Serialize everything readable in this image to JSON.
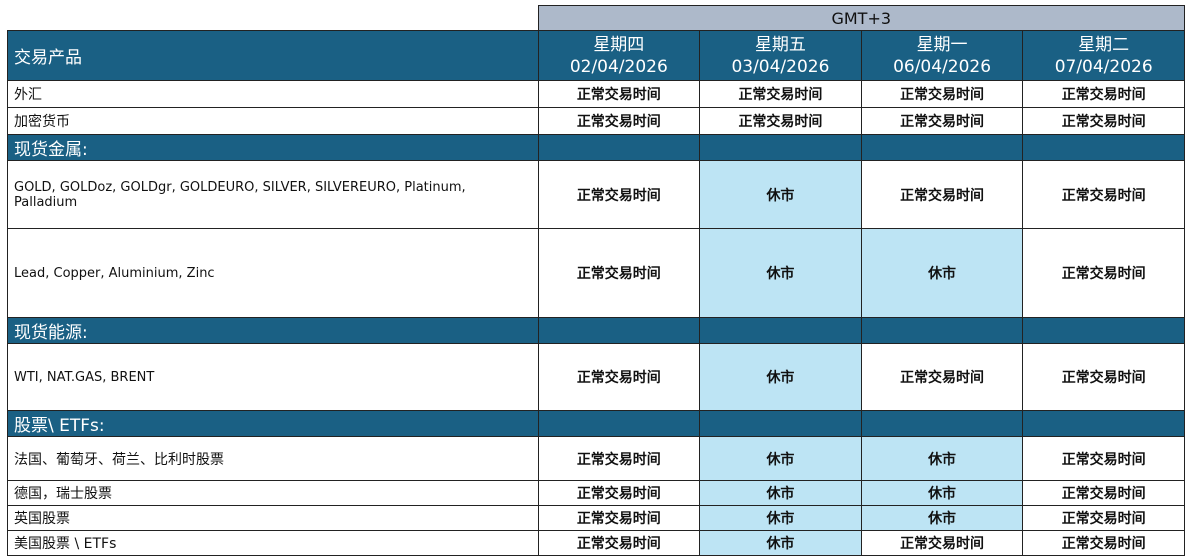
{
  "timezone": "GMT+3",
  "header_label": "交易产品",
  "days": [
    {
      "weekday": "星期四",
      "date": "02/04/2026"
    },
    {
      "weekday": "星期五",
      "date": "03/04/2026"
    },
    {
      "weekday": "星期一",
      "date": "06/04/2026"
    },
    {
      "weekday": "星期二",
      "date": "07/04/2026"
    }
  ],
  "colors": {
    "header": "#1a6084",
    "gmt": "#adb9ca",
    "closed": "#bde4f4"
  },
  "rows": [
    {
      "type": "item",
      "name": "外汇",
      "h": 27,
      "values": [
        "正常交易时间",
        "正常交易时间",
        "正常交易时间",
        "正常交易时间"
      ]
    },
    {
      "type": "item",
      "name": "加密货币",
      "h": 27,
      "values": [
        "正常交易时间",
        "正常交易时间",
        "正常交易时间",
        "正常交易时间"
      ]
    },
    {
      "type": "section",
      "name": "现货金属:",
      "h": 26
    },
    {
      "type": "item",
      "name": "GOLD, GOLDoz, GOLDgr, GOLDEURO, SILVER, SILVEREURO, Platinum, Palladium",
      "en": true,
      "h": 68,
      "values": [
        "正常交易时间",
        "休市",
        "正常交易时间",
        "正常交易时间"
      ]
    },
    {
      "type": "item",
      "name": "Lead, Copper, Aluminium, Zinc",
      "en": true,
      "h": 89,
      "values": [
        "正常交易时间",
        "休市",
        "休市",
        "正常交易时间"
      ]
    },
    {
      "type": "section",
      "name": "现货能源:",
      "h": 26
    },
    {
      "type": "item",
      "name": "WTI, NAT.GAS, BRENT",
      "en": true,
      "h": 67,
      "values": [
        "正常交易时间",
        "休市",
        "正常交易时间",
        "正常交易时间"
      ]
    },
    {
      "type": "section",
      "name": "股票\\ ETFs:",
      "h": 26
    },
    {
      "type": "item",
      "name": "法国、葡萄牙、荷兰、比利时股票",
      "h": 44,
      "values": [
        "正常交易时间",
        "休市",
        "休市",
        "正常交易时间"
      ]
    },
    {
      "type": "item",
      "name": "德国，瑞士股票",
      "h": 25,
      "values": [
        "正常交易时间",
        "休市",
        "休市",
        "正常交易时间"
      ]
    },
    {
      "type": "item",
      "name": "英国股票",
      "h": 25,
      "values": [
        "正常交易时间",
        "休市",
        "休市",
        "正常交易时间"
      ]
    },
    {
      "type": "item",
      "name": "美国股票 \\ ETFs",
      "h": 25,
      "values": [
        "正常交易时间",
        "休市",
        "正常交易时间",
        "正常交易时间"
      ]
    }
  ]
}
